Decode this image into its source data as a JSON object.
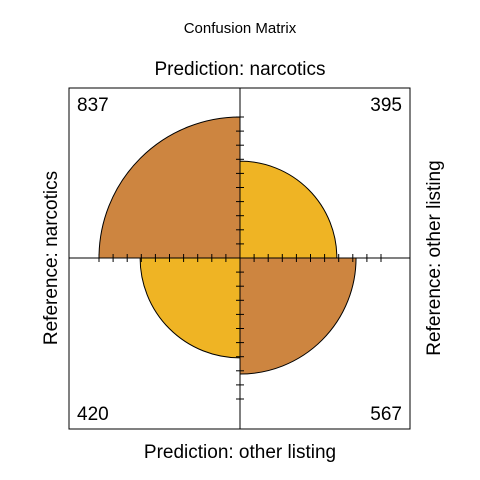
{
  "chart_data": {
    "type": "fourfold",
    "title": "Confusion Matrix",
    "top_label": "Prediction: narcotics",
    "bottom_label": "Prediction: other listing",
    "left_label": "Reference: narcotics",
    "right_label": "Reference: other listing",
    "cells": [
      {
        "quadrant": "top-left",
        "reference": "narcotics",
        "prediction": "narcotics",
        "count": 837,
        "correct": true
      },
      {
        "quadrant": "top-right",
        "reference": "other listing",
        "prediction": "narcotics",
        "count": 395,
        "correct": false
      },
      {
        "quadrant": "bottom-left",
        "reference": "narcotics",
        "prediction": "other listing",
        "count": 420,
        "correct": false
      },
      {
        "quadrant": "bottom-right",
        "reference": "other listing",
        "prediction": "other listing",
        "count": 567,
        "correct": true
      }
    ],
    "colors": {
      "correct": "#CD8540",
      "incorrect": "#EFB424"
    }
  }
}
